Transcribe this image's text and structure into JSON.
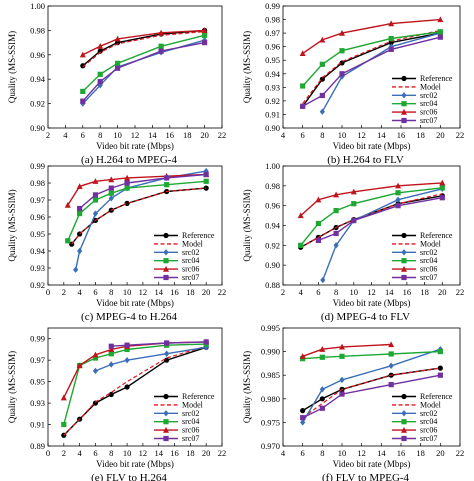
{
  "chart_data": [
    {
      "type": "line",
      "caption": "(a) H.264 to MPEG-4",
      "xlabel": "Video bit rate (Mbps)",
      "ylabel": "Quality (MS-SSIM)",
      "xlim": [
        2,
        22
      ],
      "ylim": [
        0.9,
        1.0
      ],
      "xticks": [
        "2",
        "4",
        "6",
        "8",
        "10",
        "12",
        "14",
        "16",
        "18",
        "20",
        "22"
      ],
      "yticks": [
        "0.90",
        "0.92",
        "0.94",
        "0.96",
        "0.98",
        "1.00"
      ],
      "legend": "none",
      "series": [
        {
          "name": "Reference",
          "color": "#000000",
          "dash": "solid",
          "marker": "circle",
          "x": [
            6,
            8,
            10,
            15,
            20
          ],
          "y": [
            0.951,
            0.963,
            0.97,
            0.977,
            0.98
          ]
        },
        {
          "name": "Model",
          "color": "#e8141c",
          "dash": "dashed",
          "marker": "none",
          "x": [
            6,
            8,
            10,
            15,
            20
          ],
          "y": [
            0.95,
            0.962,
            0.969,
            0.976,
            0.979
          ]
        },
        {
          "name": "src02",
          "color": "#3a6fb8",
          "dash": "solid",
          "marker": "diamond",
          "x": [
            6,
            8,
            10,
            15,
            20
          ],
          "y": [
            0.92,
            0.935,
            0.95,
            0.962,
            0.972
          ]
        },
        {
          "name": "src04",
          "color": "#1ca832",
          "dash": "solid",
          "marker": "square",
          "x": [
            6,
            8,
            10,
            15,
            20
          ],
          "y": [
            0.93,
            0.944,
            0.953,
            0.967,
            0.976
          ]
        },
        {
          "name": "src06",
          "color": "#c0141c",
          "dash": "solid",
          "marker": "triangle",
          "x": [
            6,
            8,
            10,
            15,
            20
          ],
          "y": [
            0.96,
            0.967,
            0.973,
            0.978,
            0.98
          ]
        },
        {
          "name": "src07",
          "color": "#7030a0",
          "dash": "solid",
          "marker": "square",
          "x": [
            6,
            8,
            10,
            15,
            20
          ],
          "y": [
            0.922,
            0.938,
            0.949,
            0.963,
            0.97
          ]
        }
      ]
    },
    {
      "type": "line",
      "caption": "(b) H.264 to FLV",
      "xlabel": "Video bit rate (Mbps)",
      "ylabel": "Quality (MS-SSIM)",
      "xlim": [
        4,
        22
      ],
      "ylim": [
        0.9,
        0.99
      ],
      "xticks": [
        "4",
        "6",
        "8",
        "10",
        "12",
        "14",
        "16",
        "18",
        "20",
        "22"
      ],
      "yticks": [
        "0.90",
        "0.91",
        "0.92",
        "0.93",
        "0.94",
        "0.95",
        "0.96",
        "0.97",
        "0.98",
        "0.99"
      ],
      "legend": "bottom-right",
      "series": [
        {
          "name": "Reference",
          "color": "#000000",
          "dash": "solid",
          "marker": "circle",
          "x": [
            6,
            8,
            10,
            15,
            20
          ],
          "y": [
            0.916,
            0.936,
            0.948,
            0.963,
            0.97
          ]
        },
        {
          "name": "Model",
          "color": "#e8141c",
          "dash": "dashed",
          "marker": "none",
          "x": [
            6,
            8,
            10,
            15,
            20
          ],
          "y": [
            0.918,
            0.937,
            0.949,
            0.964,
            0.972
          ]
        },
        {
          "name": "src02",
          "color": "#3a6fb8",
          "dash": "solid",
          "marker": "diamond",
          "x": [
            8,
            10,
            15,
            20
          ],
          "y": [
            0.912,
            0.938,
            0.96,
            0.97
          ]
        },
        {
          "name": "src04",
          "color": "#1ca832",
          "dash": "solid",
          "marker": "square",
          "x": [
            6,
            8,
            10,
            15,
            20
          ],
          "y": [
            0.931,
            0.947,
            0.957,
            0.966,
            0.971
          ]
        },
        {
          "name": "src06",
          "color": "#c0141c",
          "dash": "solid",
          "marker": "triangle",
          "x": [
            6,
            8,
            10,
            15,
            20
          ],
          "y": [
            0.955,
            0.965,
            0.97,
            0.977,
            0.98
          ]
        },
        {
          "name": "src07",
          "color": "#7030a0",
          "dash": "solid",
          "marker": "square",
          "x": [
            6,
            8,
            10,
            15,
            20
          ],
          "y": [
            0.916,
            0.924,
            0.94,
            0.958,
            0.967
          ]
        }
      ]
    },
    {
      "type": "line",
      "caption": "(c) MPEG-4 to H.264",
      "xlabel": "Vidoe bit rate (Mbps)",
      "ylabel": "Quality (MS-SSIM)",
      "xlim": [
        0,
        22
      ],
      "ylim": [
        0.92,
        0.99
      ],
      "xticks": [
        "0",
        "2",
        "4",
        "6",
        "8",
        "10",
        "12",
        "14",
        "16",
        "18",
        "20",
        "22"
      ],
      "yticks": [
        "0.92",
        "0.93",
        "0.94",
        "0.95",
        "0.96",
        "0.97",
        "0.98",
        "0.99"
      ],
      "legend": "bottom-right",
      "series": [
        {
          "name": "Reference",
          "color": "#000000",
          "dash": "solid",
          "marker": "circle",
          "x": [
            3,
            4,
            6,
            8,
            10,
            15,
            20
          ],
          "y": [
            0.944,
            0.95,
            0.958,
            0.964,
            0.968,
            0.975,
            0.977
          ]
        },
        {
          "name": "Model",
          "color": "#e8141c",
          "dash": "dashed",
          "marker": "none",
          "x": [
            3,
            4,
            6,
            8,
            10,
            15,
            20
          ],
          "y": [
            0.944,
            0.95,
            0.958,
            0.964,
            0.968,
            0.975,
            0.977
          ]
        },
        {
          "name": "src02",
          "color": "#3a6fb8",
          "dash": "solid",
          "marker": "diamond",
          "x": [
            3.5,
            4,
            6,
            8,
            10,
            15,
            20
          ],
          "y": [
            0.929,
            0.94,
            0.962,
            0.971,
            0.977,
            0.983,
            0.987
          ]
        },
        {
          "name": "src04",
          "color": "#1ca832",
          "dash": "solid",
          "marker": "square",
          "x": [
            2.5,
            4,
            6,
            8,
            10,
            15,
            20
          ],
          "y": [
            0.946,
            0.962,
            0.97,
            0.974,
            0.977,
            0.979,
            0.981
          ]
        },
        {
          "name": "src06",
          "color": "#c0141c",
          "dash": "solid",
          "marker": "triangle",
          "x": [
            2.5,
            4,
            6,
            8,
            10,
            15,
            20
          ],
          "y": [
            0.967,
            0.978,
            0.981,
            0.982,
            0.983,
            0.984,
            0.985
          ]
        },
        {
          "name": "src07",
          "color": "#7030a0",
          "dash": "solid",
          "marker": "square",
          "x": [
            4,
            6,
            8,
            10,
            15,
            20
          ],
          "y": [
            0.965,
            0.973,
            0.977,
            0.98,
            0.983,
            0.985
          ]
        }
      ]
    },
    {
      "type": "line",
      "caption": "(d) MPEG-4 to FLV",
      "xlabel": "Video bit rate (Mbps)",
      "ylabel": "Quality (MS-SSIM)",
      "xlim": [
        2,
        22
      ],
      "ylim": [
        0.88,
        1.0
      ],
      "xticks": [
        "2",
        "4",
        "6",
        "8",
        "10",
        "12",
        "14",
        "16",
        "18",
        "20",
        "22"
      ],
      "yticks": [
        "0.88",
        "0.90",
        "0.92",
        "0.94",
        "0.96",
        "0.98",
        "1.00"
      ],
      "legend": "bottom-right",
      "series": [
        {
          "name": "Reference",
          "color": "#000000",
          "dash": "solid",
          "marker": "circle",
          "x": [
            4,
            6,
            8,
            10,
            15,
            20
          ],
          "y": [
            0.918,
            0.928,
            0.938,
            0.946,
            0.962,
            0.97
          ]
        },
        {
          "name": "Model",
          "color": "#e8141c",
          "dash": "dashed",
          "marker": "none",
          "x": [
            4,
            6,
            8,
            10,
            15,
            20
          ],
          "y": [
            0.918,
            0.928,
            0.938,
            0.946,
            0.962,
            0.972
          ]
        },
        {
          "name": "src02",
          "color": "#3a6fb8",
          "dash": "solid",
          "marker": "diamond",
          "x": [
            6.5,
            8,
            10,
            15,
            20
          ],
          "y": [
            0.885,
            0.92,
            0.945,
            0.966,
            0.977
          ]
        },
        {
          "name": "src04",
          "color": "#1ca832",
          "dash": "solid",
          "marker": "square",
          "x": [
            4,
            6,
            8,
            10,
            15,
            20
          ],
          "y": [
            0.92,
            0.942,
            0.955,
            0.962,
            0.973,
            0.978
          ]
        },
        {
          "name": "src06",
          "color": "#c0141c",
          "dash": "solid",
          "marker": "triangle",
          "x": [
            4,
            6,
            8,
            10,
            15,
            20
          ],
          "y": [
            0.95,
            0.966,
            0.971,
            0.974,
            0.98,
            0.983
          ]
        },
        {
          "name": "src07",
          "color": "#7030a0",
          "dash": "solid",
          "marker": "square",
          "x": [
            6,
            8,
            10,
            15,
            20
          ],
          "y": [
            0.925,
            0.932,
            0.945,
            0.96,
            0.968
          ]
        }
      ]
    },
    {
      "type": "line",
      "caption": "(e) FLV to H.264",
      "xlabel": "Video bit rate (Mbps)",
      "ylabel": "Quality (MS-SSIM)",
      "xlim": [
        0,
        22
      ],
      "ylim": [
        0.89,
        1.0
      ],
      "xticks": [
        "0",
        "2",
        "4",
        "6",
        "8",
        "10",
        "12",
        "14",
        "16",
        "18",
        "20",
        "22"
      ],
      "yticks": [
        "0.89",
        "0.91",
        "0.93",
        "0.95",
        "0.97",
        "0.99"
      ],
      "legend": "bottom-right",
      "series": [
        {
          "name": "Reference",
          "color": "#000000",
          "dash": "solid",
          "marker": "circle",
          "x": [
            2,
            4,
            6,
            8,
            10,
            15,
            20
          ],
          "y": [
            0.9,
            0.915,
            0.93,
            0.938,
            0.945,
            0.97,
            0.982
          ]
        },
        {
          "name": "Model",
          "color": "#e8141c",
          "dash": "dashed",
          "marker": "none",
          "x": [
            2,
            4,
            6,
            8,
            10,
            15,
            20
          ],
          "y": [
            0.9,
            0.915,
            0.931,
            0.94,
            0.95,
            0.972,
            0.983
          ]
        },
        {
          "name": "src02",
          "color": "#3a6fb8",
          "dash": "solid",
          "marker": "diamond",
          "x": [
            6,
            8,
            10,
            15,
            20
          ],
          "y": [
            0.96,
            0.966,
            0.97,
            0.976,
            0.982
          ]
        },
        {
          "name": "src04",
          "color": "#1ca832",
          "dash": "solid",
          "marker": "square",
          "x": [
            2,
            4,
            6,
            8,
            10,
            15,
            20
          ],
          "y": [
            0.91,
            0.965,
            0.972,
            0.976,
            0.98,
            0.984,
            0.985
          ]
        },
        {
          "name": "src06",
          "color": "#c0141c",
          "dash": "solid",
          "marker": "triangle",
          "x": [
            2,
            4,
            6,
            8,
            10,
            15,
            20
          ],
          "y": [
            0.935,
            0.965,
            0.975,
            0.98,
            0.983,
            0.986,
            0.987
          ]
        },
        {
          "name": "src07",
          "color": "#7030a0",
          "dash": "solid",
          "marker": "square",
          "x": [
            8,
            10,
            15,
            20
          ],
          "y": [
            0.983,
            0.984,
            0.986,
            0.987
          ]
        }
      ]
    },
    {
      "type": "line",
      "caption": "(f) FLV to MPEG-4",
      "xlabel": "Video bit rate (Mbps)",
      "ylabel": "Quality (MS-SSIM)",
      "xlim": [
        4,
        22
      ],
      "ylim": [
        0.97,
        0.995
      ],
      "xticks": [
        "4",
        "6",
        "8",
        "10",
        "12",
        "14",
        "16",
        "18",
        "20",
        "22"
      ],
      "yticks": [
        "0.970",
        "0.975",
        "0.980",
        "0.985",
        "0.990",
        "0.995"
      ],
      "legend": "bottom-right",
      "series": [
        {
          "name": "Reference",
          "color": "#000000",
          "dash": "solid",
          "marker": "circle",
          "x": [
            6,
            8,
            10,
            15,
            20
          ],
          "y": [
            0.9775,
            0.98,
            0.982,
            0.985,
            0.9865
          ]
        },
        {
          "name": "Model",
          "color": "#e8141c",
          "dash": "dashed",
          "marker": "none",
          "x": [
            6,
            8,
            10,
            15,
            20
          ],
          "y": [
            0.976,
            0.979,
            0.982,
            0.985,
            0.9865
          ]
        },
        {
          "name": "src02",
          "color": "#3a6fb8",
          "dash": "solid",
          "marker": "diamond",
          "x": [
            6,
            8,
            10,
            15,
            20
          ],
          "y": [
            0.975,
            0.982,
            0.984,
            0.987,
            0.9905
          ]
        },
        {
          "name": "src04",
          "color": "#1ca832",
          "dash": "solid",
          "marker": "square",
          "x": [
            6,
            8,
            10,
            15,
            20
          ],
          "y": [
            0.9885,
            0.9888,
            0.989,
            0.9895,
            0.99
          ]
        },
        {
          "name": "src06",
          "color": "#c0141c",
          "dash": "solid",
          "marker": "triangle",
          "x": [
            6,
            8,
            10,
            15
          ],
          "y": [
            0.989,
            0.9905,
            0.991,
            0.9915
          ]
        },
        {
          "name": "src07",
          "color": "#7030a0",
          "dash": "solid",
          "marker": "square",
          "x": [
            6,
            8,
            10,
            15,
            20
          ],
          "y": [
            0.976,
            0.978,
            0.981,
            0.983,
            0.985
          ]
        }
      ]
    }
  ]
}
